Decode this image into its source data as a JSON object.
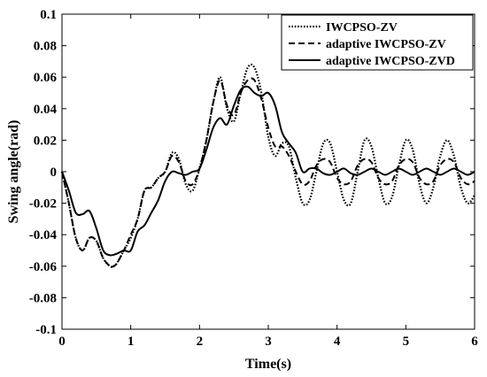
{
  "chart_data": {
    "type": "line",
    "title": "",
    "xlabel": "Time(s)",
    "ylabel": "Swing angle(rad)",
    "xlim": [
      0,
      6
    ],
    "ylim": [
      -0.1,
      0.1
    ],
    "xticks": [
      0,
      1,
      2,
      3,
      4,
      5,
      6
    ],
    "yticks": [
      -0.1,
      -0.08,
      -0.06,
      -0.04,
      -0.02,
      0,
      0.02,
      0.04,
      0.06,
      0.08,
      0.1
    ],
    "xtick_labels": [
      "0",
      "1",
      "2",
      "3",
      "4",
      "5",
      "6"
    ],
    "ytick_labels": [
      "-0.1",
      "-0.08",
      "-0.06",
      "-0.04",
      "-0.02",
      "0",
      "0.02",
      "0.04",
      "0.06",
      "0.08",
      "0.1"
    ],
    "grid": false,
    "legend_position": "top-right",
    "series": [
      {
        "name": "IWCPSO-ZV",
        "style": "dotted",
        "x": [
          0,
          0.1,
          0.2,
          0.3,
          0.4,
          0.5,
          0.6,
          0.7,
          0.75,
          0.8,
          0.9,
          1.0,
          1.1,
          1.2,
          1.3,
          1.4,
          1.5,
          1.6,
          1.7,
          1.8,
          1.9,
          2.0,
          2.1,
          2.2,
          2.3,
          2.4,
          2.5,
          2.6,
          2.7,
          2.8,
          2.9,
          3.0,
          3.1,
          3.2,
          3.3,
          3.4,
          3.5,
          3.6,
          3.7,
          3.8,
          3.9,
          4.0,
          4.1,
          4.2,
          4.3,
          4.4,
          4.5,
          4.6,
          4.7,
          4.8,
          4.9,
          5.0,
          5.1,
          5.2,
          5.3,
          5.4,
          5.5,
          5.6,
          5.7,
          5.8,
          5.9,
          6.0
        ],
        "y": [
          0,
          -0.02,
          -0.042,
          -0.05,
          -0.042,
          -0.044,
          -0.055,
          -0.06,
          -0.06,
          -0.058,
          -0.05,
          -0.042,
          -0.03,
          -0.012,
          -0.01,
          -0.004,
          0.0,
          0.012,
          0.008,
          -0.008,
          -0.012,
          0.002,
          0.02,
          0.044,
          0.06,
          0.04,
          0.032,
          0.05,
          0.066,
          0.066,
          0.05,
          0.022,
          0.01,
          0.018,
          0.016,
          -0.004,
          -0.02,
          -0.018,
          0.0,
          0.018,
          0.018,
          0.0,
          -0.018,
          -0.02,
          0.0,
          0.02,
          0.016,
          -0.004,
          -0.02,
          -0.016,
          0.004,
          0.02,
          0.014,
          -0.008,
          -0.02,
          -0.01,
          0.01,
          0.02,
          0.01,
          -0.01,
          -0.02,
          -0.015
        ]
      },
      {
        "name": "adaptive IWCPSO-ZV",
        "style": "dashed",
        "x": [
          0,
          0.1,
          0.2,
          0.3,
          0.4,
          0.5,
          0.6,
          0.7,
          0.75,
          0.8,
          0.9,
          1.0,
          1.1,
          1.2,
          1.3,
          1.4,
          1.5,
          1.6,
          1.7,
          1.8,
          1.9,
          2.0,
          2.1,
          2.2,
          2.3,
          2.4,
          2.5,
          2.6,
          2.7,
          2.8,
          2.9,
          3.0,
          3.1,
          3.2,
          3.3,
          3.4,
          3.5,
          3.6,
          3.7,
          3.8,
          3.9,
          4.0,
          4.1,
          4.2,
          4.3,
          4.4,
          4.5,
          4.6,
          4.7,
          4.8,
          4.9,
          5.0,
          5.1,
          5.2,
          5.3,
          5.4,
          5.5,
          5.6,
          5.7,
          5.8,
          5.9,
          6.0
        ],
        "y": [
          0,
          -0.02,
          -0.042,
          -0.05,
          -0.042,
          -0.044,
          -0.055,
          -0.06,
          -0.06,
          -0.058,
          -0.05,
          -0.04,
          -0.03,
          -0.012,
          -0.01,
          -0.004,
          0.0,
          0.01,
          0.006,
          -0.006,
          -0.008,
          0.002,
          0.02,
          0.044,
          0.058,
          0.042,
          0.036,
          0.05,
          0.058,
          0.058,
          0.046,
          0.028,
          0.016,
          0.016,
          0.01,
          0.0,
          -0.008,
          -0.006,
          0.004,
          0.008,
          0.006,
          -0.004,
          -0.008,
          -0.006,
          0.004,
          0.008,
          0.006,
          -0.004,
          -0.008,
          -0.006,
          0.004,
          0.008,
          0.006,
          -0.004,
          -0.008,
          -0.006,
          0.004,
          0.008,
          0.006,
          -0.004,
          -0.008,
          -0.006
        ]
      },
      {
        "name": "adaptive IWCPSO-ZVD",
        "style": "solid",
        "x": [
          0,
          0.1,
          0.2,
          0.3,
          0.4,
          0.5,
          0.6,
          0.7,
          0.8,
          0.9,
          1.0,
          1.1,
          1.2,
          1.3,
          1.4,
          1.5,
          1.6,
          1.7,
          1.8,
          1.9,
          2.0,
          2.1,
          2.2,
          2.3,
          2.4,
          2.5,
          2.6,
          2.7,
          2.8,
          2.9,
          3.0,
          3.1,
          3.2,
          3.3,
          3.4,
          3.5,
          3.6,
          3.7,
          3.8,
          3.9,
          4.0,
          4.1,
          4.2,
          4.3,
          4.4,
          4.5,
          4.6,
          4.7,
          4.8,
          4.9,
          5.0,
          5.1,
          5.2,
          5.3,
          5.4,
          5.5,
          5.6,
          5.7,
          5.8,
          5.9,
          6.0
        ],
        "y": [
          0,
          -0.012,
          -0.026,
          -0.027,
          -0.025,
          -0.036,
          -0.05,
          -0.053,
          -0.052,
          -0.05,
          -0.05,
          -0.038,
          -0.034,
          -0.026,
          -0.018,
          -0.006,
          0.0,
          -0.001,
          -0.002,
          0.0,
          0.002,
          0.014,
          0.028,
          0.034,
          0.03,
          0.042,
          0.052,
          0.054,
          0.05,
          0.048,
          0.05,
          0.042,
          0.025,
          0.018,
          0.012,
          0.0,
          0.002,
          0.002,
          -0.001,
          -0.002,
          0.0,
          0.002,
          -0.001,
          -0.002,
          0.0,
          0.002,
          0.0,
          -0.002,
          0.0,
          0.002,
          0.0,
          -0.002,
          0.0,
          0.002,
          0.0,
          -0.002,
          0.0,
          0.002,
          0.0,
          -0.002,
          0.0
        ]
      }
    ]
  }
}
